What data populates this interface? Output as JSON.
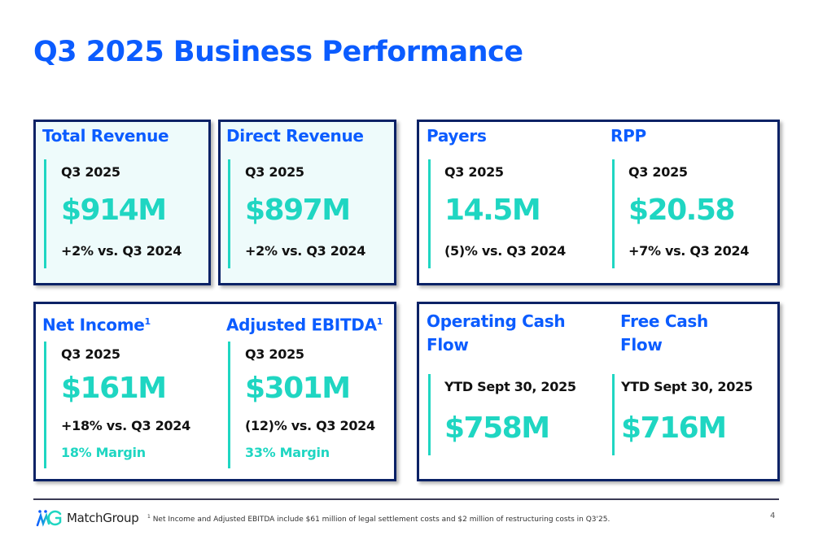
{
  "title": "Q3 2025 Business Performance",
  "colors": {
    "primary_blue": "#0b5cff",
    "teal": "#1fd6c2",
    "navy_border": "#0b2266",
    "tint_bg": "#eefbfb"
  },
  "metrics": {
    "total_revenue": {
      "heading": "Total Revenue",
      "period": "Q3 2025",
      "value": "$914M",
      "change": "+2% vs. Q3 2024"
    },
    "direct_revenue": {
      "heading": "Direct Revenue",
      "period": "Q3 2025",
      "value": "$897M",
      "change": "+2% vs. Q3 2024"
    },
    "payers": {
      "heading": "Payers",
      "period": "Q3 2025",
      "value": "14.5M",
      "change": "(5)% vs. Q3 2024"
    },
    "rpp": {
      "heading": "RPP",
      "period": "Q3 2025",
      "value": "$20.58",
      "change": "+7% vs. Q3 2024"
    },
    "net_income": {
      "heading": "Net Income",
      "footnote_mark": "1",
      "period": "Q3 2025",
      "value": "$161M",
      "change": "+18% vs. Q3 2024",
      "margin": "18% Margin"
    },
    "adjusted_ebitda": {
      "heading": "Adjusted EBITDA",
      "footnote_mark": "1",
      "period": "Q3 2025",
      "value": "$301M",
      "change": "(12)% vs. Q3 2024",
      "margin": "33% Margin"
    },
    "operating_cash_flow": {
      "heading_line1": "Operating Cash",
      "heading_line2": "Flow",
      "period": "YTD Sept 30, 2025",
      "value": "$758M"
    },
    "free_cash_flow": {
      "heading_line1": "Free Cash",
      "heading_line2": "Flow",
      "period": "YTD Sept 30, 2025",
      "value": "$716M"
    }
  },
  "footer": {
    "logo_text": "MatchGroup",
    "footnote_mark": "1",
    "footnote": " Net Income and Adjusted EBITDA include $61 million of legal settlement costs and $2 million of restructuring costs in Q3'25.",
    "page_number": "4"
  }
}
